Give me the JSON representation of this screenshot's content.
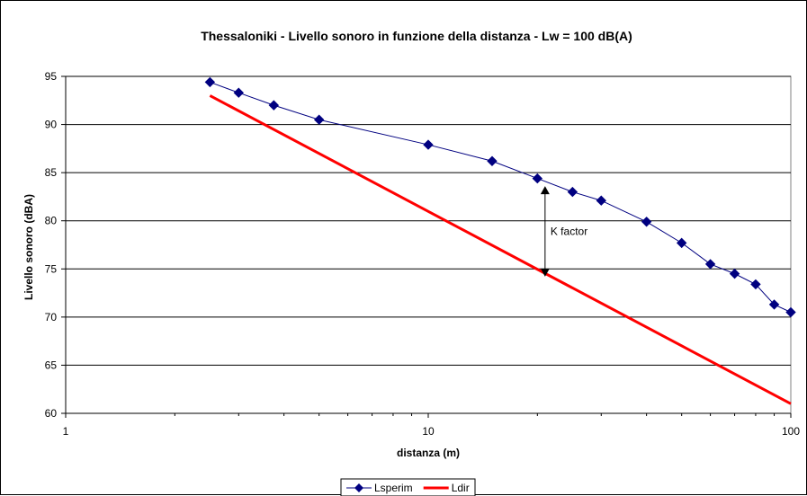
{
  "chart_data": {
    "type": "line",
    "title": "Thessaloniki - Livello sonoro in funzione della distanza - Lw = 100 dB(A)",
    "xlabel": "distanza (m)",
    "ylabel": "Livello sonoro (dBA)",
    "x_scale": "log",
    "xlim": [
      1,
      100
    ],
    "ylim": [
      60,
      95
    ],
    "x_ticks": [
      1,
      10,
      100
    ],
    "x_tick_labels": [
      "1",
      "10",
      "100"
    ],
    "y_ticks": [
      60,
      65,
      70,
      75,
      80,
      85,
      90,
      95
    ],
    "y_tick_labels": [
      "60",
      "65",
      "70",
      "75",
      "80",
      "85",
      "90",
      "95"
    ],
    "grid": "horizontal major gridlines",
    "legend_position": "bottom",
    "series": [
      {
        "name": "Lsperim",
        "color": "#000080",
        "marker": "diamond",
        "x": [
          2.5,
          3,
          3.75,
          5,
          10,
          15,
          20,
          25,
          30,
          40,
          50,
          60,
          70,
          80,
          90,
          100
        ],
        "y": [
          94.4,
          93.3,
          92.0,
          90.5,
          87.9,
          86.2,
          84.4,
          83.0,
          82.1,
          79.9,
          77.7,
          75.5,
          74.5,
          73.4,
          71.3,
          70.5
        ]
      },
      {
        "name": "Ldir",
        "color": "#FF0000",
        "marker": "none",
        "x": [
          2.5,
          100
        ],
        "y": [
          93.0,
          61.0
        ]
      }
    ],
    "annotations": [
      {
        "text": "K factor",
        "x": 21,
        "y_top": 83.6,
        "y_bottom": 74.2
      }
    ]
  }
}
